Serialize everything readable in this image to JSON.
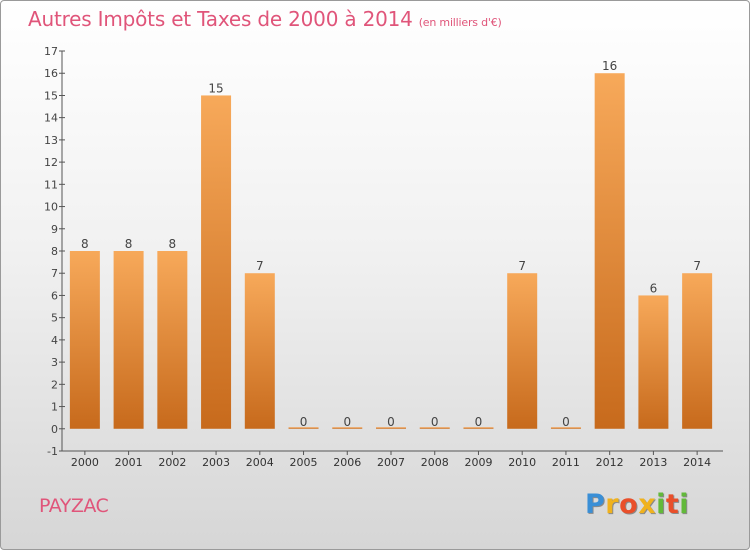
{
  "title": "Autres Impôts et Taxes de 2000 à 2014",
  "subtitle": "(en milliers d'€)",
  "town": "PAYZAC",
  "logo": "Proxiti",
  "colors": {
    "title": "#e0557a",
    "bar_light": "#f7a95a",
    "bar_dark": "#c76a1c",
    "logo": [
      "#3a8fd6",
      "#f0b21e",
      "#e94f2a",
      "#62b93a"
    ]
  },
  "chart_data": {
    "type": "bar",
    "categories": [
      "2000",
      "2001",
      "2002",
      "2003",
      "2004",
      "2005",
      "2006",
      "2007",
      "2008",
      "2009",
      "2010",
      "2011",
      "2012",
      "2013",
      "2014"
    ],
    "values": [
      8,
      8,
      8,
      15,
      7,
      0,
      0,
      0,
      0,
      0,
      7,
      0,
      16,
      6,
      7
    ],
    "data_labels": [
      "8",
      "8",
      "8",
      "15",
      "7",
      "0",
      "0",
      "0",
      "0",
      "0",
      "7",
      "0",
      "16",
      "6",
      "7"
    ],
    "ylim": [
      -1,
      17
    ],
    "yticks": [
      "-1",
      "0",
      "1",
      "2",
      "3",
      "4",
      "5",
      "6",
      "7",
      "8",
      "9",
      "10",
      "11",
      "12",
      "13",
      "14",
      "15",
      "16",
      "17"
    ],
    "grid": false,
    "legend": "none"
  }
}
